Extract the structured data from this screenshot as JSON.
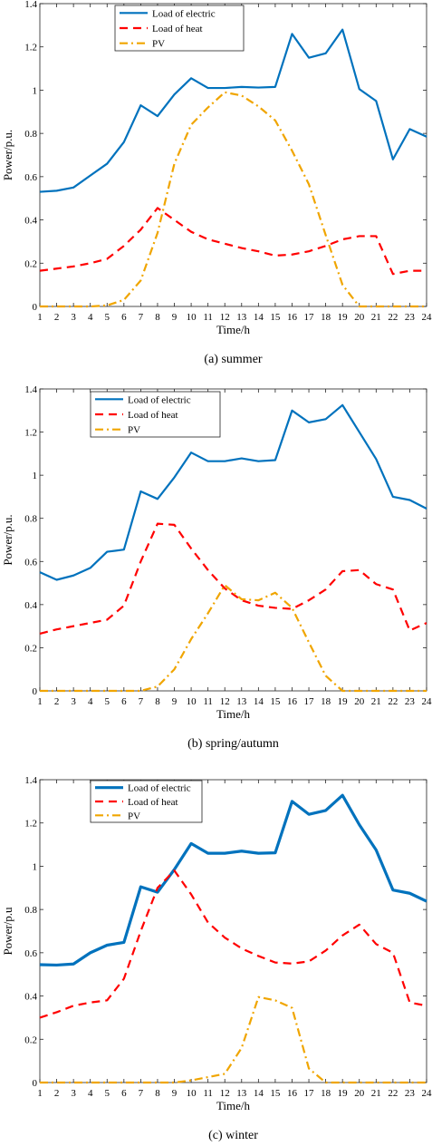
{
  "chart_data": [
    {
      "type": "line",
      "caption": "(a) summer",
      "xlabel": "Time/h",
      "ylabel": "Power/p.u.",
      "x": [
        1,
        2,
        3,
        4,
        5,
        6,
        7,
        8,
        9,
        10,
        11,
        12,
        13,
        14,
        15,
        16,
        17,
        18,
        19,
        20,
        21,
        22,
        23,
        24
      ],
      "xlim": [
        1,
        24
      ],
      "ylim": [
        0,
        1.4
      ],
      "yticks": [
        0,
        0.2,
        0.4,
        0.6,
        0.8,
        1,
        1.2,
        1.4
      ],
      "ytick_labels": [
        "0",
        "0.2",
        "0.4",
        "0.6",
        "0.8",
        "1",
        "1.2",
        "1.4"
      ],
      "legend_position": "top-left",
      "series": [
        {
          "name": "Load of electric",
          "color": "#0072bd",
          "style": "solid",
          "values": [
            0.53,
            0.535,
            0.55,
            0.605,
            0.66,
            0.76,
            0.93,
            0.88,
            0.98,
            1.055,
            1.01,
            1.01,
            1.015,
            1.012,
            1.015,
            1.26,
            1.15,
            1.17,
            1.28,
            1.005,
            0.95,
            0.68,
            0.82,
            0.785
          ]
        },
        {
          "name": "Load of heat",
          "color": "#ff0000",
          "style": "dashed",
          "values": [
            0.165,
            0.175,
            0.185,
            0.2,
            0.22,
            0.28,
            0.355,
            0.455,
            0.4,
            0.345,
            0.31,
            0.29,
            0.27,
            0.255,
            0.235,
            0.24,
            0.255,
            0.28,
            0.31,
            0.325,
            0.325,
            0.15,
            0.165,
            0.165
          ]
        },
        {
          "name": "PV",
          "color": "#f0a500",
          "style": "dashdot",
          "values": [
            0,
            0,
            0,
            0,
            0.005,
            0.03,
            0.12,
            0.34,
            0.66,
            0.84,
            0.92,
            0.99,
            0.975,
            0.925,
            0.86,
            0.72,
            0.565,
            0.33,
            0.1,
            0,
            0,
            0,
            0,
            0
          ]
        }
      ]
    },
    {
      "type": "line",
      "caption": "(b) spring/autumn",
      "xlabel": "Time/h",
      "ylabel": "Power/p.u.",
      "x": [
        1,
        2,
        3,
        4,
        5,
        6,
        7,
        8,
        9,
        10,
        11,
        12,
        13,
        14,
        15,
        16,
        17,
        18,
        19,
        20,
        21,
        22,
        23,
        24
      ],
      "xlim": [
        1,
        24
      ],
      "ylim": [
        0,
        1.4
      ],
      "yticks": [
        0,
        0.2,
        0.4,
        0.6,
        0.8,
        1,
        1.2,
        1.4
      ],
      "ytick_labels": [
        "0",
        "0.2",
        "0.4",
        "0.6",
        "0.8",
        "1",
        "1.2",
        "1.4"
      ],
      "legend_position": "top-left",
      "series": [
        {
          "name": "Load of electric",
          "color": "#0072bd",
          "style": "solid",
          "values": [
            0.55,
            0.515,
            0.535,
            0.57,
            0.645,
            0.655,
            0.925,
            0.89,
            0.99,
            1.105,
            1.065,
            1.065,
            1.078,
            1.065,
            1.07,
            1.3,
            1.245,
            1.26,
            1.325,
            1.2,
            1.075,
            0.9,
            0.885,
            0.845
          ]
        },
        {
          "name": "Load of heat",
          "color": "#ff0000",
          "style": "dashed",
          "values": [
            0.265,
            0.285,
            0.3,
            0.315,
            0.33,
            0.395,
            0.6,
            0.775,
            0.77,
            0.66,
            0.56,
            0.475,
            0.42,
            0.395,
            0.385,
            0.38,
            0.42,
            0.47,
            0.555,
            0.56,
            0.495,
            0.47,
            0.28,
            0.315
          ]
        },
        {
          "name": "PV",
          "color": "#f0a500",
          "style": "dashdot",
          "values": [
            0,
            0,
            0,
            0,
            0,
            0,
            0,
            0.02,
            0.1,
            0.24,
            0.36,
            0.49,
            0.425,
            0.42,
            0.455,
            0.385,
            0.225,
            0.07,
            0,
            0,
            0,
            0,
            0,
            0
          ]
        }
      ]
    },
    {
      "type": "line",
      "caption": "(c) winter",
      "xlabel": "Time/h",
      "ylabel": "Power/p.u",
      "x": [
        1,
        2,
        3,
        4,
        5,
        6,
        7,
        8,
        9,
        10,
        11,
        12,
        13,
        14,
        15,
        16,
        17,
        18,
        19,
        20,
        21,
        22,
        23,
        24
      ],
      "xlim": [
        1,
        24
      ],
      "ylim": [
        0,
        1.4
      ],
      "yticks": [
        0,
        0.2,
        0.4,
        0.6,
        0.8,
        1,
        1.2,
        1.4
      ],
      "ytick_labels": [
        "0",
        "0.2",
        "0.4",
        "0.6",
        "0.8",
        "1",
        "1.2",
        "1.4"
      ],
      "legend_position": "top-left",
      "series": [
        {
          "name": "Load of electric",
          "color": "#0072bd",
          "style": "solid",
          "values": [
            0.545,
            0.543,
            0.548,
            0.6,
            0.635,
            0.648,
            0.905,
            0.88,
            0.985,
            1.105,
            1.06,
            1.06,
            1.07,
            1.06,
            1.062,
            1.3,
            1.24,
            1.258,
            1.328,
            1.192,
            1.075,
            0.89,
            0.875,
            0.838
          ]
        },
        {
          "name": "Load of heat",
          "color": "#ff0000",
          "style": "dashed",
          "values": [
            0.3,
            0.325,
            0.355,
            0.37,
            0.38,
            0.48,
            0.7,
            0.9,
            0.98,
            0.87,
            0.74,
            0.67,
            0.62,
            0.585,
            0.555,
            0.55,
            0.56,
            0.61,
            0.68,
            0.73,
            0.64,
            0.6,
            0.37,
            0.355
          ]
        },
        {
          "name": "PV",
          "color": "#f0a500",
          "style": "dashdot",
          "values": [
            0,
            0,
            0,
            0,
            0,
            0,
            0,
            0,
            0,
            0.01,
            0.025,
            0.04,
            0.16,
            0.395,
            0.38,
            0.345,
            0.065,
            0,
            0,
            0,
            0,
            0,
            0,
            0
          ]
        }
      ]
    }
  ]
}
